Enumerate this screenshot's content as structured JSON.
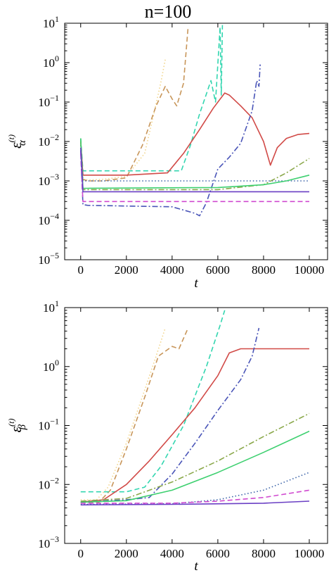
{
  "title": "n=100",
  "chart_data": [
    {
      "type": "line",
      "panel": "alpha",
      "ylabel_main": "ε",
      "ylabel_sup": "(t)",
      "ylabel_sub": "α",
      "xlabel": "t",
      "xlim": [
        -700,
        10800
      ],
      "ylim": [
        1e-05,
        10
      ],
      "yscale": "log",
      "xticks": [
        0,
        2000,
        4000,
        6000,
        8000,
        10000
      ],
      "xtick_labels": [
        "0",
        "2000",
        "4000",
        "6000",
        "8000",
        "10000"
      ],
      "yticks": [
        1e-05,
        0.0001,
        0.001,
        0.01,
        0.1,
        1,
        10
      ],
      "ytick_base": "10",
      "ytick_exponents": [
        "−5",
        "−4",
        "−3",
        "−2",
        "−1",
        "0",
        "1"
      ],
      "grid": false,
      "series": [
        {
          "color": "#f2d58a",
          "dash": "dot",
          "x": [
            0,
            100,
            300,
            1000,
            2000,
            2800,
            3200,
            3500,
            3700
          ],
          "y": [
            0.012,
            0.0011,
            0.00105,
            0.0011,
            0.0013,
            0.005,
            0.05,
            0.3,
            1.2
          ]
        },
        {
          "color": "#c8965a",
          "dash": "dash",
          "x": [
            0,
            100,
            300,
            1000,
            2000,
            2700,
            3300,
            3700,
            4000,
            4200,
            4500,
            4700
          ],
          "y": [
            0.011,
            0.0011,
            0.001,
            0.001,
            0.0012,
            0.008,
            0.08,
            0.25,
            0.12,
            0.08,
            0.3,
            8
          ]
        },
        {
          "color": "#33d6b0",
          "dash": "dash",
          "x": [
            0,
            100,
            300,
            4000,
            4400,
            4800,
            5200,
            5700,
            5900,
            6100,
            6150,
            6200
          ],
          "y": [
            0.012,
            0.0018,
            0.0018,
            0.0018,
            0.0018,
            0.008,
            0.05,
            0.35,
            0.1,
            8,
            0.15,
            9
          ]
        },
        {
          "color": "#d14a47",
          "dash": "solid",
          "x": [
            0,
            100,
            300,
            2000,
            3800,
            4500,
            5200,
            5800,
            6300,
            6500,
            7000,
            7500,
            8000,
            8300,
            8600,
            9000,
            9500,
            10000
          ],
          "y": [
            0.01,
            0.0014,
            0.0014,
            0.0014,
            0.0016,
            0.005,
            0.02,
            0.07,
            0.17,
            0.15,
            0.08,
            0.04,
            0.01,
            0.0025,
            0.007,
            0.012,
            0.015,
            0.016
          ]
        },
        {
          "color": "#4a55b8",
          "dash": "dashdot",
          "x": [
            0,
            100,
            300,
            2000,
            4000,
            5000,
            5200,
            5500,
            6000,
            6500,
            7000,
            7500,
            7700,
            7800,
            7850
          ],
          "y": [
            0.006,
            0.00025,
            0.00024,
            0.00023,
            0.00022,
            0.00015,
            0.00013,
            0.00028,
            0.002,
            0.004,
            0.009,
            0.06,
            0.35,
            0.25,
            0.9
          ]
        },
        {
          "color": "#3a62a8",
          "dash": "dot",
          "x": [
            0,
            100,
            300,
            10000
          ],
          "y": [
            0.008,
            0.001,
            0.001,
            0.001
          ]
        },
        {
          "color": "#8aa84a",
          "dash": "dashdot",
          "x": [
            0,
            100,
            300,
            6000,
            8000,
            9000,
            10000
          ],
          "y": [
            0.01,
            0.0006,
            0.0006,
            0.0006,
            0.0008,
            0.0016,
            0.0037
          ]
        },
        {
          "color": "#3ed070",
          "dash": "solid",
          "x": [
            0,
            100,
            300,
            6000,
            8000,
            9000,
            10000
          ],
          "y": [
            0.012,
            0.00065,
            0.00065,
            0.00068,
            0.0008,
            0.001,
            0.0014
          ]
        },
        {
          "color": "#d04ad0",
          "dash": "dash",
          "x": [
            0,
            100,
            300,
            10000
          ],
          "y": [
            0.005,
            0.0003,
            0.0003,
            0.0003
          ]
        },
        {
          "color": "#6a3fc4",
          "dash": "solid",
          "x": [
            0,
            100,
            300,
            10000
          ],
          "y": [
            0.007,
            0.00053,
            0.00053,
            0.00053
          ]
        }
      ]
    },
    {
      "type": "line",
      "panel": "beta",
      "ylabel_main": "ε",
      "ylabel_sup": "(t)",
      "ylabel_sub": "β",
      "xlabel": "t",
      "xlim": [
        -700,
        10800
      ],
      "ylim": [
        0.001,
        10
      ],
      "yscale": "log",
      "xticks": [
        0,
        2000,
        4000,
        6000,
        8000,
        10000
      ],
      "xtick_labels": [
        "0",
        "2000",
        "4000",
        "6000",
        "8000",
        "10000"
      ],
      "yticks": [
        0.001,
        0.01,
        0.1,
        1,
        10
      ],
      "ytick_base": "10",
      "ytick_exponents": [
        "−3",
        "−2",
        "−1",
        "0",
        "1"
      ],
      "grid": false,
      "series": [
        {
          "color": "#f2d58a",
          "dash": "dot",
          "x": [
            0,
            700,
            1200,
            2000,
            2800,
            3300,
            3700
          ],
          "y": [
            0.0055,
            0.0055,
            0.009,
            0.05,
            0.4,
            1.5,
            4.5
          ]
        },
        {
          "color": "#c8965a",
          "dash": "dash",
          "x": [
            0,
            800,
            1300,
            2000,
            2800,
            3400,
            4000,
            4300,
            4700
          ],
          "y": [
            0.005,
            0.005,
            0.008,
            0.04,
            0.3,
            1.5,
            2.2,
            2.0,
            4.5
          ]
        },
        {
          "color": "#33d6b0",
          "dash": "dash",
          "x": [
            0,
            2000,
            2800,
            3500,
            4500,
            5500,
            6100,
            6300
          ],
          "y": [
            0.0075,
            0.0075,
            0.009,
            0.02,
            0.1,
            1.0,
            5.0,
            9.0
          ]
        },
        {
          "color": "#d14a47",
          "dash": "solid",
          "x": [
            0,
            1000,
            2000,
            3000,
            4000,
            5000,
            6000,
            6500,
            7000,
            8000,
            10000
          ],
          "y": [
            0.005,
            0.0055,
            0.01,
            0.025,
            0.07,
            0.2,
            0.7,
            1.7,
            2.0,
            2.0,
            2.0
          ]
        },
        {
          "color": "#4a55b8",
          "dash": "dashdot",
          "x": [
            0,
            2000,
            3000,
            4000,
            5000,
            6000,
            7000,
            7500,
            7800
          ],
          "y": [
            0.005,
            0.0055,
            0.006,
            0.015,
            0.05,
            0.18,
            0.6,
            1.5,
            4.5
          ]
        },
        {
          "color": "#3a62a8",
          "dash": "dot",
          "x": [
            0,
            4000,
            6000,
            8000,
            10000
          ],
          "y": [
            0.0046,
            0.0047,
            0.0055,
            0.008,
            0.016
          ]
        },
        {
          "color": "#8aa84a",
          "dash": "dashdot",
          "x": [
            0,
            2000,
            4000,
            6000,
            8000,
            10000
          ],
          "y": [
            0.0052,
            0.0058,
            0.011,
            0.025,
            0.065,
            0.16
          ]
        },
        {
          "color": "#3ed070",
          "dash": "solid",
          "x": [
            0,
            2000,
            4000,
            6000,
            8000,
            10000
          ],
          "y": [
            0.005,
            0.0053,
            0.008,
            0.016,
            0.035,
            0.08
          ]
        },
        {
          "color": "#d04ad0",
          "dash": "dash",
          "x": [
            0,
            4000,
            6000,
            8000,
            10000
          ],
          "y": [
            0.0048,
            0.0048,
            0.0052,
            0.006,
            0.008
          ]
        },
        {
          "color": "#6a3fc4",
          "dash": "solid",
          "x": [
            0,
            4000,
            8000,
            10000
          ],
          "y": [
            0.0045,
            0.0046,
            0.0048,
            0.0052
          ]
        }
      ]
    }
  ]
}
